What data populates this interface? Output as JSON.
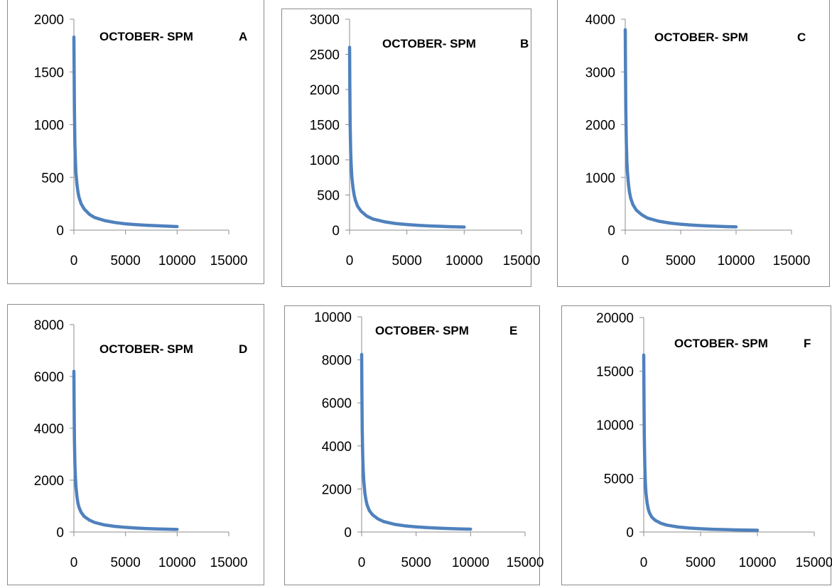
{
  "colors": {
    "series": "#4f81bd",
    "axis": "#8c8c8c"
  },
  "chart_data": [
    {
      "type": "line",
      "title": "OCTOBER- SPM    A",
      "xlabel": "",
      "ylabel": "",
      "xlim": [
        0,
        15000
      ],
      "ylim": [
        0,
        2000
      ],
      "x_ticks": [
        0,
        5000,
        10000,
        15000
      ],
      "y_ticks": [
        0,
        500,
        1000,
        1500,
        2000
      ],
      "x_tick_labels": [
        "0",
        "5000",
        "10000",
        "15000"
      ],
      "y_tick_labels": [
        "0",
        "500",
        "1000",
        "1500",
        "2000"
      ],
      "series": [
        {
          "x": [
            1,
            25,
            50,
            100,
            150,
            200,
            300,
            400,
            500,
            700,
            1000,
            1500,
            2000,
            3000,
            4000,
            5000,
            6000,
            7000,
            8000,
            9000,
            10000
          ],
          "y": [
            1830,
            1500,
            1150,
            800,
            650,
            540,
            430,
            360,
            310,
            250,
            200,
            150,
            120,
            90,
            72,
            60,
            52,
            46,
            42,
            38,
            34
          ]
        }
      ]
    },
    {
      "type": "line",
      "title": "OCTOBER- SPM    B",
      "xlabel": "",
      "ylabel": "",
      "xlim": [
        0,
        15000
      ],
      "ylim": [
        0,
        3000
      ],
      "x_ticks": [
        0,
        5000,
        10000,
        15000
      ],
      "y_ticks": [
        0,
        500,
        1000,
        1500,
        2000,
        2500,
        3000
      ],
      "x_tick_labels": [
        "0",
        "5000",
        "10000",
        "15000"
      ],
      "y_tick_labels": [
        "0",
        "500",
        "1000",
        "1500",
        "2000",
        "2500",
        "3000"
      ],
      "series": [
        {
          "x": [
            1,
            25,
            50,
            100,
            150,
            200,
            300,
            400,
            500,
            700,
            1000,
            1500,
            2000,
            3000,
            4000,
            5000,
            6000,
            7000,
            8000,
            9000,
            10000
          ],
          "y": [
            2600,
            2000,
            1500,
            1100,
            900,
            750,
            600,
            500,
            430,
            340,
            270,
            200,
            160,
            120,
            95,
            80,
            68,
            60,
            54,
            48,
            44
          ]
        }
      ]
    },
    {
      "type": "line",
      "title": "OCTOBER- SPM    C",
      "xlabel": "",
      "ylabel": "",
      "xlim": [
        0,
        15000
      ],
      "ylim": [
        0,
        4000
      ],
      "x_ticks": [
        0,
        5000,
        10000,
        15000
      ],
      "y_ticks": [
        0,
        1000,
        2000,
        3000,
        4000
      ],
      "x_tick_labels": [
        "0",
        "5000",
        "10000",
        "15000"
      ],
      "y_tick_labels": [
        "0",
        "1000",
        "2000",
        "3000",
        "4000"
      ],
      "series": [
        {
          "x": [
            1,
            25,
            50,
            100,
            150,
            200,
            300,
            400,
            500,
            700,
            1000,
            1500,
            2000,
            3000,
            4000,
            5000,
            6000,
            7000,
            8000,
            9000,
            10000
          ],
          "y": [
            3800,
            3000,
            2300,
            1650,
            1300,
            1100,
            850,
            700,
            600,
            480,
            380,
            290,
            230,
            170,
            135,
            112,
            96,
            84,
            75,
            68,
            62
          ]
        }
      ]
    },
    {
      "type": "line",
      "title": "OCTOBER- SPM    D",
      "xlabel": "",
      "ylabel": "",
      "xlim": [
        0,
        15000
      ],
      "ylim": [
        0,
        8000
      ],
      "x_ticks": [
        0,
        5000,
        10000,
        15000
      ],
      "y_ticks": [
        0,
        2000,
        4000,
        6000,
        8000
      ],
      "x_tick_labels": [
        "0",
        "5000",
        "10000",
        "15000"
      ],
      "y_tick_labels": [
        "0",
        "2000",
        "4000",
        "6000",
        "8000"
      ],
      "series": [
        {
          "x": [
            1,
            25,
            50,
            100,
            150,
            200,
            300,
            400,
            500,
            700,
            1000,
            1500,
            2000,
            3000,
            4000,
            5000,
            6000,
            7000,
            8000,
            9000,
            10000
          ],
          "y": [
            6200,
            4800,
            3600,
            2600,
            2100,
            1750,
            1350,
            1100,
            950,
            760,
            600,
            460,
            370,
            270,
            215,
            180,
            155,
            135,
            120,
            108,
            98
          ]
        }
      ]
    },
    {
      "type": "line",
      "title": "OCTOBER- SPM    E",
      "xlabel": "",
      "ylabel": "",
      "xlim": [
        0,
        15000
      ],
      "ylim": [
        0,
        10000
      ],
      "x_ticks": [
        0,
        5000,
        10000,
        15000
      ],
      "y_ticks": [
        0,
        2000,
        4000,
        6000,
        8000,
        10000
      ],
      "x_tick_labels": [
        "0",
        "5000",
        "10000",
        "15000"
      ],
      "y_tick_labels": [
        "0",
        "2000",
        "4000",
        "6000",
        "8000",
        "10000"
      ],
      "series": [
        {
          "x": [
            1,
            25,
            50,
            100,
            150,
            200,
            300,
            400,
            500,
            700,
            1000,
            1500,
            2000,
            3000,
            4000,
            5000,
            6000,
            7000,
            8000,
            9000,
            10000
          ],
          "y": [
            8250,
            6400,
            4800,
            3500,
            2800,
            2350,
            1800,
            1480,
            1260,
            1000,
            800,
            610,
            490,
            360,
            285,
            240,
            205,
            180,
            160,
            145,
            132
          ]
        }
      ]
    },
    {
      "type": "line",
      "title": "OCTOBER- SPM    F",
      "xlabel": "",
      "ylabel": "",
      "xlim": [
        0,
        15000
      ],
      "ylim": [
        0,
        20000
      ],
      "x_ticks": [
        0,
        5000,
        10000,
        15000
      ],
      "y_ticks": [
        0,
        5000,
        10000,
        15000,
        20000
      ],
      "x_tick_labels": [
        "0",
        "5000",
        "10000",
        "15000"
      ],
      "y_tick_labels": [
        "0",
        "5000",
        "10000",
        "15000",
        "20000"
      ],
      "series": [
        {
          "x": [
            1,
            25,
            50,
            100,
            150,
            200,
            300,
            400,
            500,
            700,
            1000,
            1500,
            2000,
            3000,
            4000,
            5000,
            6000,
            7000,
            8000,
            9000,
            10000
          ],
          "y": [
            16500,
            12500,
            9000,
            6000,
            4500,
            3600,
            2700,
            2150,
            1800,
            1400,
            1100,
            820,
            650,
            470,
            370,
            305,
            260,
            228,
            202,
            182,
            165
          ]
        }
      ]
    }
  ]
}
